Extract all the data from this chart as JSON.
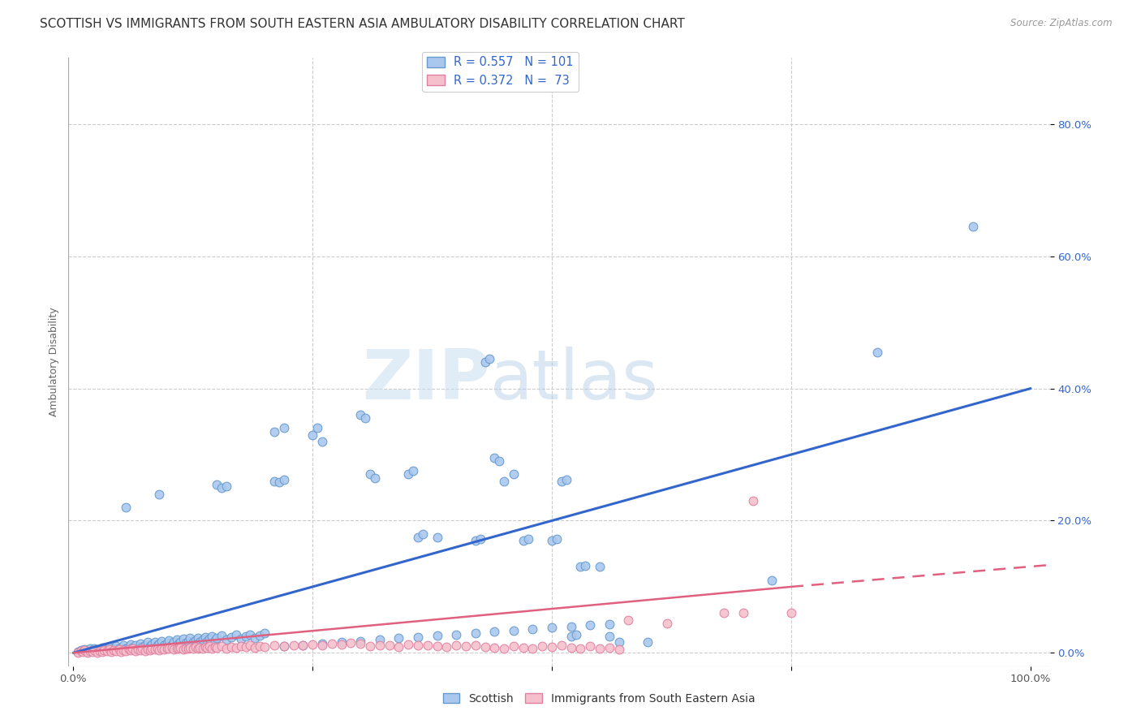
{
  "title": "SCOTTISH VS IMMIGRANTS FROM SOUTH EASTERN ASIA AMBULATORY DISABILITY CORRELATION CHART",
  "source": "Source: ZipAtlas.com",
  "ylabel": "Ambulatory Disability",
  "ytick_values": [
    0.0,
    0.2,
    0.4,
    0.6,
    0.8
  ],
  "xlim": [
    -0.005,
    1.02
  ],
  "ylim": [
    -0.02,
    0.9
  ],
  "blue_line": {
    "x0": 0.0,
    "y0": 0.0,
    "x1": 1.0,
    "y1": 0.4,
    "color": "#3366cc",
    "lw": 2.2
  },
  "pink_line_solid": {
    "x0": 0.0,
    "y0": 0.0,
    "x1": 0.75,
    "y1": 0.1,
    "color": "#e06080",
    "lw": 1.8
  },
  "pink_line_dashed": {
    "x0": 0.75,
    "y0": 0.1,
    "x1": 1.02,
    "y1": 0.133,
    "color": "#e06080",
    "lw": 1.8,
    "dashes": [
      6,
      4
    ]
  },
  "watermark_zip": "ZIP",
  "watermark_atlas": "atlas",
  "title_fontsize": 11,
  "axis_label_fontsize": 9,
  "tick_fontsize": 9.5,
  "background_color": "#ffffff",
  "grid_color": "#cccccc",
  "blue_scatter_color": "#aac8ee",
  "blue_edge_color": "#6699cc",
  "pink_scatter_color": "#f5c0cc",
  "pink_edge_color": "#e080a0",
  "scottish_points": [
    [
      0.005,
      0.002
    ],
    [
      0.008,
      0.004
    ],
    [
      0.01,
      0.003
    ],
    [
      0.012,
      0.005
    ],
    [
      0.015,
      0.002
    ],
    [
      0.018,
      0.006
    ],
    [
      0.02,
      0.004
    ],
    [
      0.022,
      0.007
    ],
    [
      0.025,
      0.003
    ],
    [
      0.028,
      0.005
    ],
    [
      0.03,
      0.008
    ],
    [
      0.032,
      0.004
    ],
    [
      0.035,
      0.006
    ],
    [
      0.038,
      0.009
    ],
    [
      0.04,
      0.005
    ],
    [
      0.042,
      0.007
    ],
    [
      0.045,
      0.01
    ],
    [
      0.048,
      0.006
    ],
    [
      0.05,
      0.008
    ],
    [
      0.052,
      0.012
    ],
    [
      0.055,
      0.007
    ],
    [
      0.058,
      0.009
    ],
    [
      0.06,
      0.013
    ],
    [
      0.062,
      0.008
    ],
    [
      0.065,
      0.011
    ],
    [
      0.068,
      0.006
    ],
    [
      0.07,
      0.014
    ],
    [
      0.072,
      0.009
    ],
    [
      0.075,
      0.012
    ],
    [
      0.078,
      0.016
    ],
    [
      0.08,
      0.01
    ],
    [
      0.082,
      0.013
    ],
    [
      0.085,
      0.017
    ],
    [
      0.088,
      0.011
    ],
    [
      0.09,
      0.014
    ],
    [
      0.092,
      0.018
    ],
    [
      0.095,
      0.012
    ],
    [
      0.098,
      0.015
    ],
    [
      0.1,
      0.019
    ],
    [
      0.103,
      0.013
    ],
    [
      0.105,
      0.016
    ],
    [
      0.108,
      0.02
    ],
    [
      0.11,
      0.014
    ],
    [
      0.112,
      0.017
    ],
    [
      0.115,
      0.021
    ],
    [
      0.118,
      0.015
    ],
    [
      0.12,
      0.018
    ],
    [
      0.122,
      0.022
    ],
    [
      0.125,
      0.016
    ],
    [
      0.128,
      0.019
    ],
    [
      0.13,
      0.023
    ],
    [
      0.132,
      0.017
    ],
    [
      0.135,
      0.02
    ],
    [
      0.138,
      0.024
    ],
    [
      0.14,
      0.018
    ],
    [
      0.142,
      0.021
    ],
    [
      0.145,
      0.025
    ],
    [
      0.148,
      0.019
    ],
    [
      0.15,
      0.022
    ],
    [
      0.155,
      0.026
    ],
    [
      0.16,
      0.02
    ],
    [
      0.165,
      0.024
    ],
    [
      0.17,
      0.027
    ],
    [
      0.175,
      0.021
    ],
    [
      0.18,
      0.025
    ],
    [
      0.185,
      0.028
    ],
    [
      0.19,
      0.022
    ],
    [
      0.195,
      0.026
    ],
    [
      0.2,
      0.03
    ],
    [
      0.055,
      0.22
    ],
    [
      0.09,
      0.24
    ],
    [
      0.15,
      0.255
    ],
    [
      0.155,
      0.25
    ],
    [
      0.16,
      0.252
    ],
    [
      0.21,
      0.26
    ],
    [
      0.215,
      0.258
    ],
    [
      0.22,
      0.262
    ],
    [
      0.21,
      0.335
    ],
    [
      0.22,
      0.34
    ],
    [
      0.25,
      0.33
    ],
    [
      0.255,
      0.34
    ],
    [
      0.26,
      0.32
    ],
    [
      0.3,
      0.36
    ],
    [
      0.305,
      0.355
    ],
    [
      0.31,
      0.27
    ],
    [
      0.315,
      0.265
    ],
    [
      0.35,
      0.27
    ],
    [
      0.355,
      0.275
    ],
    [
      0.36,
      0.175
    ],
    [
      0.365,
      0.18
    ],
    [
      0.38,
      0.175
    ],
    [
      0.42,
      0.17
    ],
    [
      0.425,
      0.172
    ],
    [
      0.43,
      0.44
    ],
    [
      0.435,
      0.445
    ],
    [
      0.44,
      0.295
    ],
    [
      0.445,
      0.29
    ],
    [
      0.45,
      0.26
    ],
    [
      0.46,
      0.27
    ],
    [
      0.47,
      0.17
    ],
    [
      0.475,
      0.172
    ],
    [
      0.5,
      0.17
    ],
    [
      0.505,
      0.172
    ],
    [
      0.51,
      0.26
    ],
    [
      0.515,
      0.262
    ],
    [
      0.52,
      0.025
    ],
    [
      0.525,
      0.027
    ],
    [
      0.53,
      0.13
    ],
    [
      0.535,
      0.132
    ],
    [
      0.55,
      0.13
    ],
    [
      0.56,
      0.025
    ],
    [
      0.57,
      0.016
    ],
    [
      0.6,
      0.016
    ],
    [
      0.73,
      0.11
    ],
    [
      0.84,
      0.455
    ],
    [
      0.94,
      0.645
    ],
    [
      0.22,
      0.01
    ],
    [
      0.24,
      0.012
    ],
    [
      0.26,
      0.014
    ],
    [
      0.28,
      0.016
    ],
    [
      0.3,
      0.018
    ],
    [
      0.32,
      0.02
    ],
    [
      0.34,
      0.022
    ],
    [
      0.36,
      0.024
    ],
    [
      0.38,
      0.026
    ],
    [
      0.4,
      0.028
    ],
    [
      0.42,
      0.03
    ],
    [
      0.44,
      0.032
    ],
    [
      0.46,
      0.034
    ],
    [
      0.48,
      0.036
    ],
    [
      0.5,
      0.038
    ],
    [
      0.52,
      0.04
    ],
    [
      0.54,
      0.042
    ],
    [
      0.56,
      0.044
    ]
  ],
  "pink_points": [
    [
      0.005,
      0.001
    ],
    [
      0.008,
      0.003
    ],
    [
      0.01,
      0.002
    ],
    [
      0.012,
      0.004
    ],
    [
      0.015,
      0.001
    ],
    [
      0.018,
      0.003
    ],
    [
      0.02,
      0.002
    ],
    [
      0.022,
      0.004
    ],
    [
      0.025,
      0.001
    ],
    [
      0.028,
      0.003
    ],
    [
      0.03,
      0.002
    ],
    [
      0.032,
      0.004
    ],
    [
      0.035,
      0.003
    ],
    [
      0.038,
      0.005
    ],
    [
      0.04,
      0.002
    ],
    [
      0.042,
      0.004
    ],
    [
      0.045,
      0.003
    ],
    [
      0.048,
      0.005
    ],
    [
      0.05,
      0.002
    ],
    [
      0.052,
      0.004
    ],
    [
      0.055,
      0.003
    ],
    [
      0.058,
      0.005
    ],
    [
      0.06,
      0.004
    ],
    [
      0.062,
      0.006
    ],
    [
      0.065,
      0.003
    ],
    [
      0.068,
      0.005
    ],
    [
      0.07,
      0.004
    ],
    [
      0.072,
      0.006
    ],
    [
      0.075,
      0.003
    ],
    [
      0.078,
      0.005
    ],
    [
      0.08,
      0.004
    ],
    [
      0.082,
      0.006
    ],
    [
      0.085,
      0.005
    ],
    [
      0.088,
      0.007
    ],
    [
      0.09,
      0.004
    ],
    [
      0.092,
      0.006
    ],
    [
      0.095,
      0.005
    ],
    [
      0.098,
      0.007
    ],
    [
      0.1,
      0.006
    ],
    [
      0.103,
      0.008
    ],
    [
      0.105,
      0.005
    ],
    [
      0.108,
      0.007
    ],
    [
      0.11,
      0.006
    ],
    [
      0.112,
      0.008
    ],
    [
      0.115,
      0.005
    ],
    [
      0.118,
      0.007
    ],
    [
      0.12,
      0.006
    ],
    [
      0.122,
      0.008
    ],
    [
      0.125,
      0.007
    ],
    [
      0.128,
      0.009
    ],
    [
      0.13,
      0.006
    ],
    [
      0.132,
      0.008
    ],
    [
      0.135,
      0.007
    ],
    [
      0.138,
      0.009
    ],
    [
      0.14,
      0.008
    ],
    [
      0.142,
      0.01
    ],
    [
      0.145,
      0.007
    ],
    [
      0.148,
      0.009
    ],
    [
      0.15,
      0.008
    ],
    [
      0.155,
      0.01
    ],
    [
      0.16,
      0.007
    ],
    [
      0.165,
      0.009
    ],
    [
      0.17,
      0.008
    ],
    [
      0.175,
      0.01
    ],
    [
      0.18,
      0.009
    ],
    [
      0.185,
      0.011
    ],
    [
      0.19,
      0.008
    ],
    [
      0.195,
      0.01
    ],
    [
      0.2,
      0.009
    ],
    [
      0.21,
      0.011
    ],
    [
      0.22,
      0.01
    ],
    [
      0.23,
      0.012
    ],
    [
      0.24,
      0.011
    ],
    [
      0.25,
      0.013
    ],
    [
      0.26,
      0.012
    ],
    [
      0.27,
      0.014
    ],
    [
      0.28,
      0.013
    ],
    [
      0.29,
      0.015
    ],
    [
      0.3,
      0.014
    ],
    [
      0.31,
      0.01
    ],
    [
      0.32,
      0.012
    ],
    [
      0.33,
      0.011
    ],
    [
      0.34,
      0.009
    ],
    [
      0.35,
      0.013
    ],
    [
      0.36,
      0.012
    ],
    [
      0.37,
      0.011
    ],
    [
      0.38,
      0.01
    ],
    [
      0.39,
      0.009
    ],
    [
      0.4,
      0.012
    ],
    [
      0.41,
      0.01
    ],
    [
      0.42,
      0.011
    ],
    [
      0.43,
      0.009
    ],
    [
      0.44,
      0.008
    ],
    [
      0.45,
      0.007
    ],
    [
      0.46,
      0.01
    ],
    [
      0.47,
      0.008
    ],
    [
      0.48,
      0.007
    ],
    [
      0.49,
      0.01
    ],
    [
      0.5,
      0.009
    ],
    [
      0.51,
      0.011
    ],
    [
      0.52,
      0.008
    ],
    [
      0.53,
      0.007
    ],
    [
      0.54,
      0.01
    ],
    [
      0.55,
      0.006
    ],
    [
      0.56,
      0.008
    ],
    [
      0.57,
      0.005
    ],
    [
      0.58,
      0.05
    ],
    [
      0.62,
      0.045
    ],
    [
      0.68,
      0.06
    ],
    [
      0.7,
      0.06
    ],
    [
      0.71,
      0.23
    ],
    [
      0.75,
      0.06
    ]
  ]
}
